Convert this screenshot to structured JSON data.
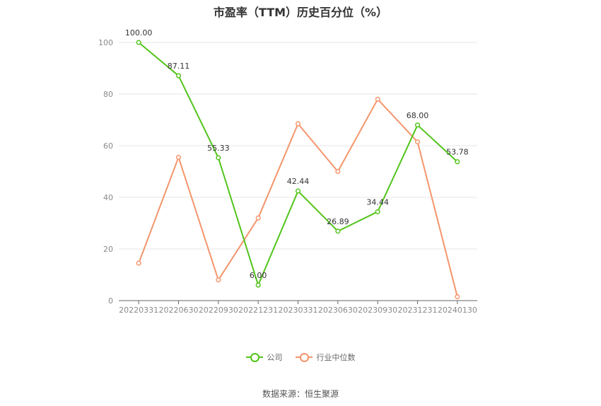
{
  "chart_data": {
    "type": "line",
    "title": "市盈率（TTM）历史百分位（%）",
    "categories": [
      "20220331",
      "20220630",
      "20220930",
      "20221231",
      "20230331",
      "20230630",
      "20230930",
      "20231231",
      "20240130"
    ],
    "ylim": [
      0,
      100
    ],
    "yticks": [
      "0",
      "20",
      "40",
      "60",
      "80",
      "100"
    ],
    "grid": true,
    "legend_position": "bottom",
    "series": [
      {
        "name": "公司",
        "color": "#52c41a",
        "values": [
          100.0,
          87.11,
          55.33,
          6.0,
          42.44,
          26.89,
          34.44,
          68.0,
          53.78
        ],
        "labels": [
          "100.00",
          "87.11",
          "55.33",
          "6.00",
          "42.44",
          "26.89",
          "34.44",
          "68.00",
          "53.78"
        ]
      },
      {
        "name": "行业中位数",
        "color": "#f4956b",
        "values": [
          14.5,
          55.5,
          8.0,
          32.0,
          68.5,
          50.0,
          78.0,
          61.5,
          1.5
        ]
      }
    ]
  },
  "source": "数据来源：恒生聚源"
}
